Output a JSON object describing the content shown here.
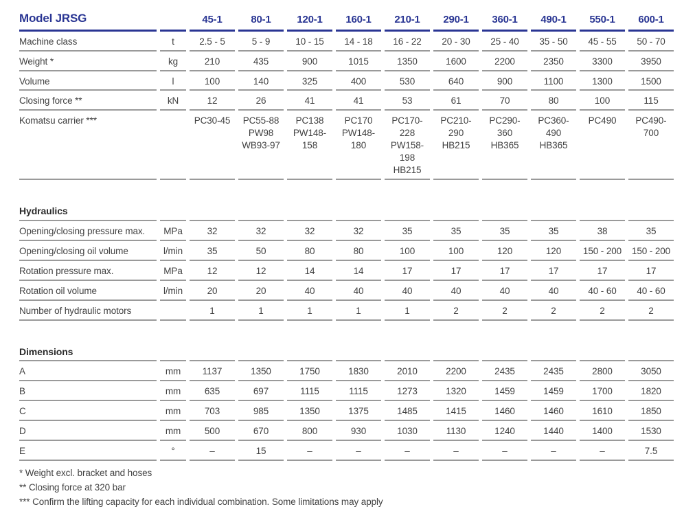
{
  "colors": {
    "accent_blue": "#293593",
    "rule_gray": "#9a9a9a",
    "text_gray": "#414141"
  },
  "table": {
    "title": "Model JRSG",
    "columns": [
      "45-1",
      "80-1",
      "120-1",
      "160-1",
      "210-1",
      "290-1",
      "360-1",
      "490-1",
      "550-1",
      "600-1"
    ],
    "sections": [
      {
        "name": null,
        "rows": [
          {
            "label": "Machine class",
            "unit": "t",
            "values": [
              "2.5 - 5",
              "5 - 9",
              "10 - 15",
              "14 - 18",
              "16 - 22",
              "20 - 30",
              "25 - 40",
              "35 - 50",
              "45 - 55",
              "50 - 70"
            ]
          },
          {
            "label": "Weight *",
            "unit": "kg",
            "values": [
              "210",
              "435",
              "900",
              "1015",
              "1350",
              "1600",
              "2200",
              "2350",
              "3300",
              "3950"
            ]
          },
          {
            "label": "Volume",
            "unit": "l",
            "values": [
              "100",
              "140",
              "325",
              "400",
              "530",
              "640",
              "900",
              "1100",
              "1300",
              "1500"
            ]
          },
          {
            "label": "Closing force **",
            "unit": "kN",
            "values": [
              "12",
              "26",
              "41",
              "41",
              "53",
              "61",
              "70",
              "80",
              "100",
              "115"
            ]
          },
          {
            "label": "Komatsu carrier ***",
            "unit": "",
            "values": [
              "PC30-45",
              "PC55-88\nPW98\nWB93-97",
              "PC138\nPW148-158",
              "PC170\nPW148-180",
              "PC170-228\nPW158-198\nHB215",
              "PC210-290\nHB215",
              "PC290-360\nHB365",
              "PC360-490\nHB365",
              "PC490",
              "PC490-700"
            ]
          }
        ]
      },
      {
        "name": "Hydraulics",
        "rows": [
          {
            "label": "Opening/closing pressure max.",
            "unit": "MPa",
            "values": [
              "32",
              "32",
              "32",
              "32",
              "35",
              "35",
              "35",
              "35",
              "38",
              "35"
            ]
          },
          {
            "label": "Opening/closing oil volume",
            "unit": "l/min",
            "values": [
              "35",
              "50",
              "80",
              "80",
              "100",
              "100",
              "120",
              "120",
              "150 - 200",
              "150 - 200"
            ]
          },
          {
            "label": "Rotation pressure max.",
            "unit": "MPa",
            "values": [
              "12",
              "12",
              "14",
              "14",
              "17",
              "17",
              "17",
              "17",
              "17",
              "17"
            ]
          },
          {
            "label": "Rotation oil volume",
            "unit": "l/min",
            "values": [
              "20",
              "20",
              "40",
              "40",
              "40",
              "40",
              "40",
              "40",
              "40 - 60",
              "40 - 60"
            ]
          },
          {
            "label": "Number of hydraulic motors",
            "unit": "",
            "values": [
              "1",
              "1",
              "1",
              "1",
              "1",
              "2",
              "2",
              "2",
              "2",
              "2"
            ]
          }
        ]
      },
      {
        "name": "Dimensions",
        "rows": [
          {
            "label": "A",
            "unit": "mm",
            "values": [
              "1137",
              "1350",
              "1750",
              "1830",
              "2010",
              "2200",
              "2435",
              "2435",
              "2800",
              "3050"
            ]
          },
          {
            "label": "B",
            "unit": "mm",
            "values": [
              "635",
              "697",
              "1115",
              "1115",
              "1273",
              "1320",
              "1459",
              "1459",
              "1700",
              "1820"
            ]
          },
          {
            "label": "C",
            "unit": "mm",
            "values": [
              "703",
              "985",
              "1350",
              "1375",
              "1485",
              "1415",
              "1460",
              "1460",
              "1610",
              "1850"
            ]
          },
          {
            "label": "D",
            "unit": "mm",
            "values": [
              "500",
              "670",
              "800",
              "930",
              "1030",
              "1130",
              "1240",
              "1440",
              "1400",
              "1530"
            ]
          },
          {
            "label": "E",
            "unit": "°",
            "values": [
              "–",
              "15",
              "–",
              "–",
              "–",
              "–",
              "–",
              "–",
              "–",
              "7.5"
            ]
          }
        ]
      }
    ]
  },
  "footnotes": [
    "* Weight excl. bracket and hoses",
    "** Closing force at 320 bar",
    "*** Confirm the lifting capacity for each individual combination. Some limitations may apply"
  ]
}
